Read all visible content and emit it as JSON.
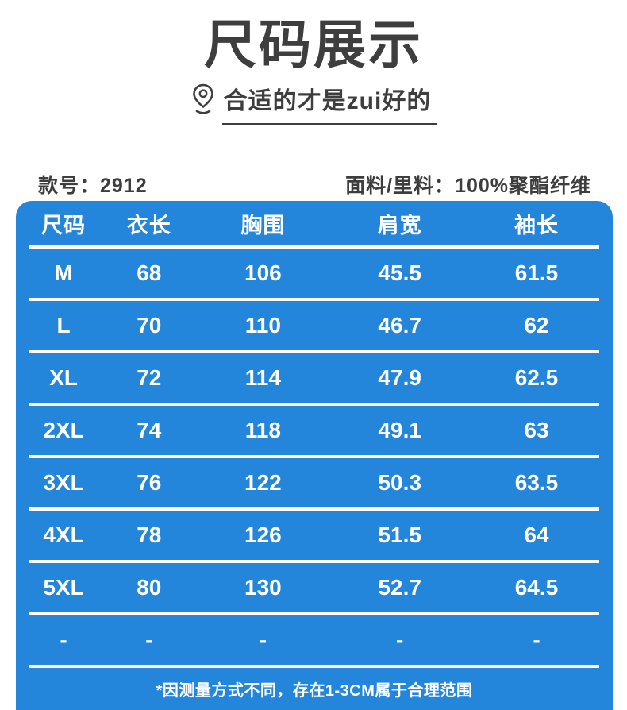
{
  "header": {
    "title": "尺码展示",
    "subtitle": "合适的才是zui好的",
    "model_label": "款号：2912",
    "fabric_label": "面料/里料：100%聚酯纤维"
  },
  "icons": {
    "location_pin": "location-pin-icon"
  },
  "colors": {
    "panel_blue": "#2486db",
    "heading_text": "#3e3e3e",
    "table_text": "#ffffff"
  },
  "chart_data": {
    "type": "table",
    "title": "尺码展示",
    "columns": [
      "尺码",
      "衣长",
      "胸围",
      "肩宽",
      "袖长"
    ],
    "rows": [
      [
        "M",
        "68",
        "106",
        "45.5",
        "61.5"
      ],
      [
        "L",
        "70",
        "110",
        "46.7",
        "62"
      ],
      [
        "XL",
        "72",
        "114",
        "47.9",
        "62.5"
      ],
      [
        "2XL",
        "74",
        "118",
        "49.1",
        "63"
      ],
      [
        "3XL",
        "76",
        "122",
        "50.3",
        "63.5"
      ],
      [
        "4XL",
        "78",
        "126",
        "51.5",
        "64"
      ],
      [
        "5XL",
        "80",
        "130",
        "52.7",
        "64.5"
      ],
      [
        "-",
        "-",
        "-",
        "-",
        "-"
      ]
    ]
  },
  "footer": {
    "note": "*因测量方式不同，存在1-3CM属于合理范围"
  }
}
